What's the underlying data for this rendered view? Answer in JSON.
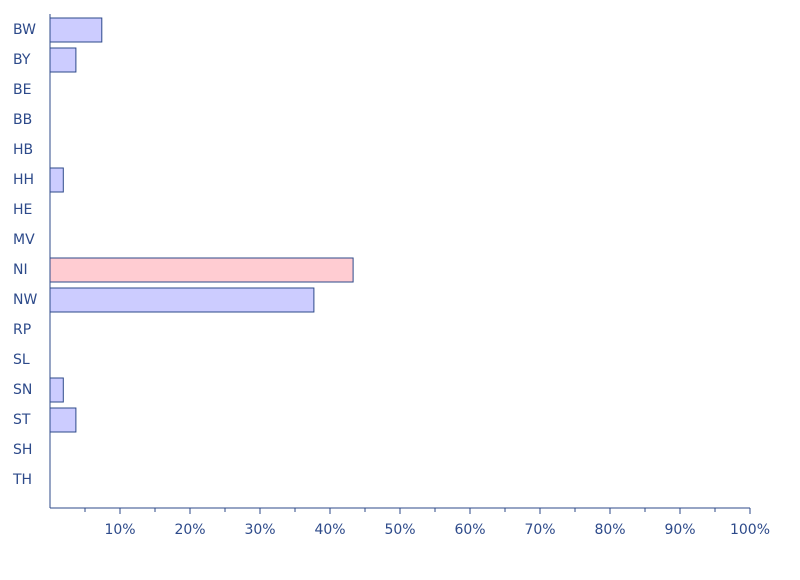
{
  "chart_data": {
    "type": "bar",
    "orientation": "horizontal",
    "categories": [
      "BW",
      "BY",
      "BE",
      "BB",
      "HB",
      "HH",
      "HE",
      "MV",
      "NI",
      "NW",
      "RP",
      "SL",
      "SN",
      "ST",
      "SH",
      "TH"
    ],
    "values": [
      7.4,
      3.7,
      0,
      0,
      0,
      1.9,
      0,
      0,
      43.3,
      37.7,
      0,
      0,
      1.9,
      3.7,
      0,
      0
    ],
    "colors": [
      "#ccccff",
      "#ccccff",
      "#ccccff",
      "#ccccff",
      "#ccccff",
      "#ccccff",
      "#ccccff",
      "#ccccff",
      "#ffccd2",
      "#ccccff",
      "#ccccff",
      "#ccccff",
      "#ccccff",
      "#ccccff",
      "#ccccff",
      "#ccccff"
    ],
    "xlim": [
      0,
      100
    ],
    "xticks": [
      {
        "value": 10,
        "label": "10%"
      },
      {
        "value": 20,
        "label": "20%"
      },
      {
        "value": 30,
        "label": "30%"
      },
      {
        "value": 40,
        "label": "40%"
      },
      {
        "value": 50,
        "label": "50%"
      },
      {
        "value": 60,
        "label": "60%"
      },
      {
        "value": 70,
        "label": "70%"
      },
      {
        "value": 80,
        "label": "80%"
      },
      {
        "value": 90,
        "label": "90%"
      },
      {
        "value": 100,
        "label": "100%"
      }
    ],
    "xminorticks": [
      5,
      15,
      25,
      35,
      45,
      55,
      65,
      75,
      85,
      95
    ],
    "grid": false
  }
}
